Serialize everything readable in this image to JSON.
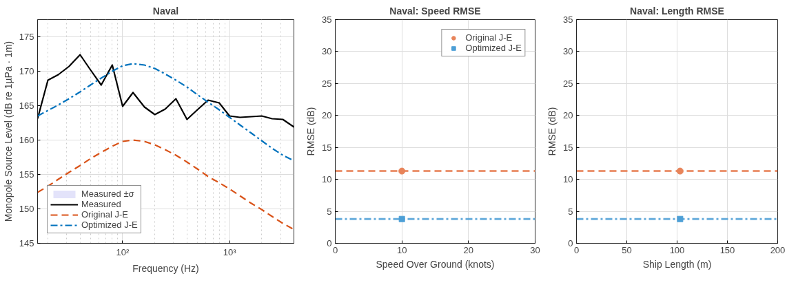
{
  "chart_data": [
    {
      "type": "line",
      "title": "Naval",
      "xlabel": "Frequency (Hz)",
      "ylabel": "Monopole Source Level (dB re 1µPa · 1m)",
      "log": "x",
      "grid": true,
      "legend": "bottom left",
      "x": [
        16,
        20,
        25,
        31.5,
        40,
        50,
        63,
        80,
        100,
        125,
        160,
        200,
        250,
        315,
        400,
        500,
        630,
        800,
        1000,
        1250,
        1600,
        2000,
        2500,
        3150,
        4000
      ],
      "xlim": [
        16,
        4000
      ],
      "xticks": [
        {
          "value": 100,
          "label": "10²"
        },
        {
          "value": 1000,
          "label": "10³"
        }
      ],
      "ylim": [
        145,
        177.5
      ],
      "yticks": [
        145,
        150,
        155,
        160,
        165,
        170,
        175
      ],
      "series": [
        {
          "name": "Measured ±σ",
          "type": "area",
          "color": "#e3e3fa",
          "values": [
            null,
            null,
            null,
            null,
            null,
            null,
            null,
            null,
            null,
            null,
            null,
            null,
            null,
            null,
            null,
            null,
            null,
            null,
            null,
            null,
            null,
            null,
            null,
            null,
            null
          ]
        },
        {
          "name": "Measured",
          "type": "line",
          "line_style": "solid",
          "color": "#000000",
          "values": [
            163.1,
            168.7,
            169.5,
            170.7,
            172.4,
            170.2,
            168.0,
            170.9,
            164.9,
            166.9,
            164.8,
            163.7,
            164.5,
            166.0,
            163.0,
            164.4,
            165.8,
            165.4,
            163.5,
            163.3,
            163.4,
            163.5,
            163.1,
            163.0,
            161.9
          ]
        },
        {
          "name": "Original J-E",
          "type": "line",
          "line_style": "dashed",
          "color": "#d95319",
          "values": [
            152.4,
            153.3,
            154.3,
            155.3,
            156.3,
            157.3,
            158.2,
            159.1,
            159.8,
            160.0,
            159.8,
            159.3,
            158.6,
            157.8,
            156.8,
            155.8,
            154.7,
            153.8,
            152.9,
            151.9,
            150.8,
            149.9,
            148.9,
            147.9,
            147.0
          ]
        },
        {
          "name": "Optimized J-E",
          "type": "line",
          "line_style": "dashdot",
          "color": "#0072bd",
          "values": [
            163.5,
            164.3,
            165.1,
            166.0,
            167.0,
            168.0,
            169.0,
            170.0,
            170.8,
            171.1,
            170.9,
            170.4,
            169.6,
            168.7,
            167.7,
            166.6,
            165.5,
            164.4,
            163.3,
            162.2,
            161.0,
            159.9,
            158.8,
            157.8,
            157.0
          ]
        }
      ]
    },
    {
      "type": "scatter",
      "title": "Naval: Speed RMSE",
      "xlabel": "Speed Over Ground (knots)",
      "ylabel": "RMSE (dB)",
      "grid": true,
      "legend": "top right",
      "xlim": [
        0,
        30
      ],
      "xticks": [
        0,
        10,
        20,
        30
      ],
      "ylim": [
        0,
        35
      ],
      "yticks": [
        0,
        5,
        10,
        15,
        20,
        25,
        30,
        35
      ],
      "x": [
        10
      ],
      "series": [
        {
          "name": "Original J-E",
          "marker": "circle",
          "color": "#e8845a",
          "values": [
            11.3
          ]
        },
        {
          "name": "Optimized J-E",
          "marker": "square",
          "color": "#4d9fd6",
          "values": [
            3.8
          ]
        }
      ],
      "ref_lines": [
        {
          "axis": "y",
          "value": 11.3,
          "color": "#e8845a",
          "line_style": "dashed"
        },
        {
          "axis": "y",
          "value": 3.8,
          "color": "#4d9fd6",
          "line_style": "dashdot"
        }
      ]
    },
    {
      "type": "scatter",
      "title": "Naval: Length RMSE",
      "xlabel": "Ship Length (m)",
      "ylabel": "RMSE (dB)",
      "grid": true,
      "xlim": [
        0,
        200
      ],
      "xticks": [
        0,
        50,
        100,
        150,
        200
      ],
      "ylim": [
        0,
        35
      ],
      "yticks": [
        0,
        5,
        10,
        15,
        20,
        25,
        30,
        35
      ],
      "x": [
        103
      ],
      "series": [
        {
          "marker": "circle",
          "color": "#e8845a",
          "values": [
            11.3
          ]
        },
        {
          "marker": "square",
          "color": "#4d9fd6",
          "values": [
            3.8
          ]
        }
      ],
      "ref_lines": [
        {
          "axis": "y",
          "value": 11.3,
          "color": "#e8845a",
          "line_style": "dashed"
        },
        {
          "axis": "y",
          "value": 3.8,
          "color": "#4d9fd6",
          "line_style": "dashdot"
        }
      ]
    }
  ]
}
